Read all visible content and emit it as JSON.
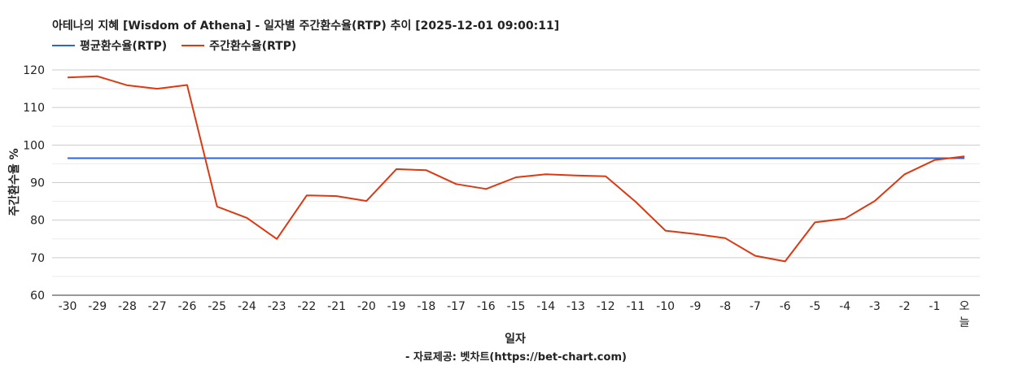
{
  "chart_data": {
    "type": "line",
    "title": "아테나의 지혜 [Wisdom of Athena] - 일자별 주간환수율(RTP) 추이 [2025-12-01 09:00:11]",
    "xlabel": "일자",
    "ylabel": "주간환수율 %",
    "categories": [
      "-30",
      "-29",
      "-28",
      "-27",
      "-26",
      "-25",
      "-24",
      "-23",
      "-22",
      "-21",
      "-20",
      "-19",
      "-18",
      "-17",
      "-16",
      "-15",
      "-14",
      "-13",
      "-12",
      "-11",
      "-10",
      "-9",
      "-8",
      "-7",
      "-6",
      "-5",
      "-4",
      "-3",
      "-2",
      "-1",
      "오늘"
    ],
    "ylim": [
      60,
      120
    ],
    "yticks": [
      60,
      70,
      80,
      90,
      100,
      110,
      120
    ],
    "grid": true,
    "legend_position": "top-left",
    "series": [
      {
        "name": "평균환수율(RTP)",
        "color": "#3366cc",
        "values": [
          96.5,
          96.5,
          96.5,
          96.5,
          96.5,
          96.5,
          96.5,
          96.5,
          96.5,
          96.5,
          96.5,
          96.5,
          96.5,
          96.5,
          96.5,
          96.5,
          96.5,
          96.5,
          96.5,
          96.5,
          96.5,
          96.5,
          96.5,
          96.5,
          96.5,
          96.5,
          96.5,
          96.5,
          96.5,
          96.5,
          96.5
        ]
      },
      {
        "name": "주간환수율(RTP)",
        "color": "#dc3912",
        "values": [
          118.0,
          118.3,
          115.9,
          115.0,
          116.0,
          83.6,
          80.6,
          75.0,
          86.6,
          86.4,
          85.1,
          93.6,
          93.3,
          89.6,
          88.3,
          91.4,
          92.2,
          91.9,
          91.7,
          84.9,
          77.2,
          76.3,
          75.2,
          70.5,
          69.0,
          79.4,
          80.4,
          85.1,
          92.2,
          96.0,
          97.0
        ]
      }
    ]
  },
  "footer": {
    "source_note": "- 자료제공: 벳차트(https://bet-chart.com)"
  }
}
